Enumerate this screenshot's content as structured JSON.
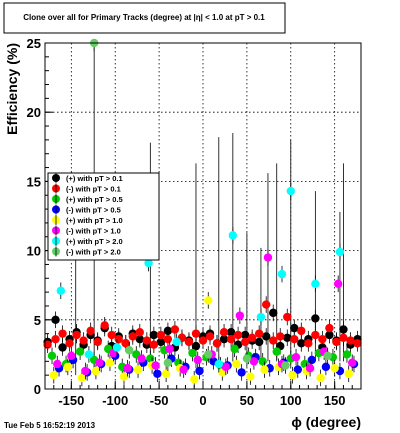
{
  "chart_data": {
    "type": "scatter",
    "title": "Clone  over all for Primary Tracks (degree) at |η| < 1.0 at pT > 0.1",
    "xlabel": "ϕ (degree)",
    "ylabel": "Efficiency (%)",
    "xlim": [
      -180,
      180
    ],
    "ylim": [
      0,
      25
    ],
    "x_ticks": [
      -150,
      -100,
      -50,
      0,
      50,
      100,
      150
    ],
    "x_tick_labels": [
      "-150",
      "-100",
      "-50",
      "0",
      "50",
      "100",
      "150"
    ],
    "y_ticks": [
      0,
      5,
      10,
      15,
      20,
      25
    ],
    "y_tick_labels": [
      "0",
      "5",
      "10",
      "15",
      "20",
      "25"
    ],
    "grid": true,
    "legend_position": "middle-left",
    "series": [
      {
        "name": "(+) with pT > 0.1",
        "color": "#000000",
        "x": [
          -177,
          -168,
          -160,
          -152,
          -144,
          -136,
          -128,
          -120,
          -112,
          -104,
          -96,
          -88,
          -80,
          -72,
          -64,
          -56,
          -48,
          -40,
          -32,
          -24,
          -16,
          -8,
          0,
          8,
          16,
          24,
          32,
          40,
          48,
          56,
          64,
          72,
          80,
          88,
          96,
          104,
          112,
          120,
          128,
          136,
          144,
          152,
          160,
          168,
          176
        ],
        "y": [
          3.4,
          5.0,
          3.0,
          3.6,
          4.1,
          3.2,
          3.9,
          3.5,
          4.4,
          3.1,
          3.8,
          3.3,
          4.0,
          3.6,
          3.2,
          3.9,
          3.4,
          4.2,
          3.0,
          3.7,
          3.5,
          3.1,
          3.8,
          4.0,
          3.3,
          3.6,
          4.1,
          3.2,
          3.9,
          3.5,
          3.4,
          3.8,
          5.5,
          3.1,
          3.7,
          4.4,
          3.3,
          3.6,
          5.1,
          3.0,
          3.9,
          3.5,
          4.3,
          3.2,
          3.6
        ]
      },
      {
        "name": "(-) with pT > 0.1",
        "color": "#ff0000",
        "x": [
          -177,
          -168,
          -160,
          -152,
          -144,
          -136,
          -128,
          -120,
          -112,
          -104,
          -96,
          -88,
          -80,
          -72,
          -64,
          -56,
          -48,
          -40,
          -32,
          -24,
          -16,
          -8,
          0,
          8,
          16,
          24,
          32,
          40,
          48,
          56,
          64,
          72,
          80,
          88,
          96,
          104,
          112,
          120,
          128,
          136,
          144,
          152,
          160,
          168,
          176
        ],
        "y": [
          3.2,
          3.6,
          4.0,
          3.3,
          3.9,
          3.5,
          4.2,
          3.4,
          4.6,
          3.9,
          3.6,
          3.3,
          3.8,
          4.1,
          3.5,
          3.2,
          3.9,
          3.6,
          4.3,
          3.7,
          3.4,
          4.0,
          3.5,
          3.8,
          3.3,
          4.1,
          3.6,
          3.9,
          3.4,
          3.7,
          4.0,
          6.1,
          3.5,
          3.8,
          5.2,
          3.6,
          4.2,
          3.3,
          3.9,
          3.6,
          4.4,
          3.4,
          3.7,
          3.5,
          3.3
        ]
      },
      {
        "name": "(+) with pT > 0.5",
        "color": "#00cc00",
        "x": [
          -172,
          -156,
          -140,
          -124,
          -108,
          -92,
          -76,
          -60,
          -44,
          -28,
          -12,
          4,
          20,
          36,
          52,
          68,
          84,
          100,
          116,
          132,
          148,
          164
        ],
        "y": [
          2.4,
          1.8,
          2.7,
          2.1,
          2.9,
          1.6,
          2.5,
          2.2,
          2.8,
          1.9,
          2.6,
          2.3,
          1.7,
          2.9,
          2.4,
          2.0,
          2.7,
          2.2,
          1.8,
          2.6,
          2.3,
          2.5
        ]
      },
      {
        "name": "(-) with pT > 0.5",
        "color": "#0000ff",
        "x": [
          -164,
          -148,
          -132,
          -116,
          -100,
          -84,
          -68,
          -52,
          -36,
          -20,
          -4,
          12,
          28,
          44,
          60,
          76,
          92,
          108,
          124,
          140,
          156,
          172
        ],
        "y": [
          1.5,
          2.1,
          1.2,
          1.8,
          2.4,
          1.4,
          1.9,
          1.1,
          2.2,
          1.6,
          1.3,
          2.0,
          1.7,
          1.2,
          2.3,
          1.5,
          1.9,
          1.4,
          2.1,
          1.6,
          1.3,
          1.8
        ]
      },
      {
        "name": "(+) with pT > 1.0",
        "color": "#ffff00",
        "x": [
          -170,
          -154,
          -138,
          -122,
          -106,
          -90,
          -74,
          -58,
          -42,
          -26,
          -10,
          6,
          22,
          38,
          54,
          70,
          86,
          102,
          118,
          134,
          150,
          166
        ],
        "y": [
          1.0,
          1.6,
          0.8,
          1.3,
          1.9,
          0.9,
          1.4,
          1.7,
          1.1,
          1.5,
          0.7,
          6.4,
          1.2,
          1.8,
          0.9,
          1.4,
          1.6,
          1.0,
          1.3,
          0.8,
          1.5,
          1.1
        ]
      },
      {
        "name": "(-) with pT > 1.0",
        "color": "#ff00ff",
        "x": [
          -166,
          -150,
          -134,
          -118,
          -102,
          -86,
          -70,
          -54,
          -38,
          -22,
          -6,
          10,
          26,
          42,
          58,
          74,
          90,
          106,
          122,
          138,
          154,
          170
        ],
        "y": [
          1.8,
          2.4,
          1.3,
          1.9,
          2.6,
          1.5,
          2.2,
          1.7,
          2.9,
          1.4,
          2.1,
          2.5,
          1.6,
          5.3,
          2.0,
          9.5,
          1.8,
          2.3,
          1.5,
          2.7,
          7.6,
          1.9
        ]
      },
      {
        "name": "(+) with pT > 2.0",
        "color": "#00ffff",
        "x": [
          -162,
          -130,
          -98,
          -62,
          -30,
          18,
          34,
          66,
          90,
          100,
          128,
          156
        ],
        "y": [
          7.1,
          2.5,
          3.0,
          9.1,
          3.4,
          1.8,
          11.1,
          5.2,
          8.3,
          14.3,
          7.6,
          9.9
        ]
      },
      {
        "name": "(-) with pT > 2.0",
        "color": "#66cc66",
        "x": [
          -166,
          -124,
          -84,
          -40,
          6,
          50,
          94,
          142
        ],
        "y": [
          14.2,
          25.0,
          2.8,
          1.9,
          2.5,
          2.2,
          1.7,
          2.4
        ]
      }
    ],
    "error_bars": [
      {
        "x": -124,
        "ylow": 1.0,
        "yhigh": 25.0
      },
      {
        "x": -60,
        "ylow": 2.0,
        "yhigh": 17.8
      },
      {
        "x": -145,
        "ylow": 1.0,
        "yhigh": 13.5
      },
      {
        "x": -8,
        "ylow": 1.5,
        "yhigh": 16.3
      },
      {
        "x": 18,
        "ylow": 2.0,
        "yhigh": 18.2
      },
      {
        "x": 34,
        "ylow": 2.0,
        "yhigh": 18.5
      },
      {
        "x": 50,
        "ylow": 2.0,
        "yhigh": 11.3
      },
      {
        "x": 66,
        "ylow": 2.0,
        "yhigh": 10.2
      },
      {
        "x": 74,
        "ylow": 2.0,
        "yhigh": 15.6
      },
      {
        "x": 84,
        "ylow": 2.0,
        "yhigh": 16.3
      },
      {
        "x": 100,
        "ylow": 2.0,
        "yhigh": 18.0
      },
      {
        "x": 128,
        "ylow": 2.0,
        "yhigh": 14.3
      },
      {
        "x": 156,
        "ylow": 2.0,
        "yhigh": 12.8
      },
      {
        "x": 160,
        "ylow": 2.0,
        "yhigh": 16.3
      }
    ]
  },
  "footer": {
    "timestamp": "Tue Feb  5 16:52:19 2013"
  }
}
